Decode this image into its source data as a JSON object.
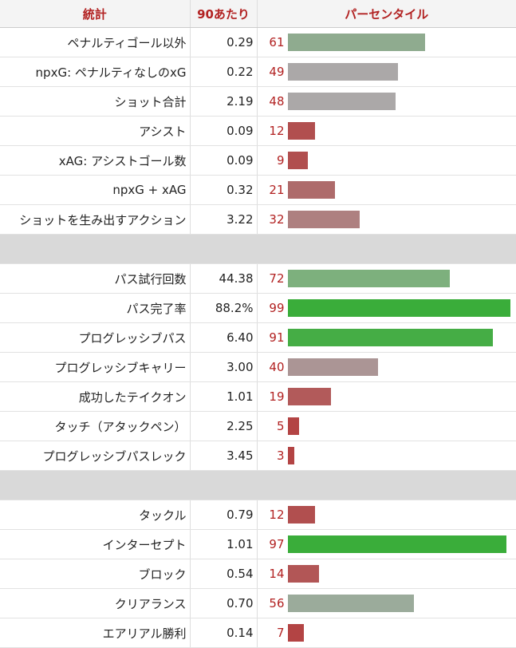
{
  "headers": {
    "stat": "統計",
    "per90": "90あたり",
    "percentile": "パーセンタイル"
  },
  "colors": {
    "header_text": "#b22222",
    "percentile_text": "#b22222",
    "bar_colors": {
      "61": "#8fab8f",
      "49": "#aba8a8",
      "48": "#aba8a8",
      "12": "#b14f4f",
      "9": "#b14f4f",
      "21": "#ae6b6b",
      "32": "#ae8080",
      "72": "#7db07d",
      "99": "#3aad3a",
      "91": "#45ad45",
      "40": "#ab9595",
      "19": "#b25a5a",
      "5": "#b34444",
      "3": "#b34444",
      "97": "#3aad3a",
      "14": "#b25656",
      "56": "#9bab9b",
      "7": "#b34444"
    }
  },
  "chart_data": {
    "type": "bar",
    "orientation": "horizontal",
    "value_range": [
      0,
      100
    ],
    "groups": [
      {
        "rows": [
          {
            "stat": "ペナルティゴール以外",
            "per90": "0.29",
            "percentile": 61
          },
          {
            "stat": "npxG: ペナルティなしのxG",
            "per90": "0.22",
            "percentile": 49
          },
          {
            "stat": "ショット合計",
            "per90": "2.19",
            "percentile": 48
          },
          {
            "stat": "アシスト",
            "per90": "0.09",
            "percentile": 12
          },
          {
            "stat": "xAG: アシストゴール数",
            "per90": "0.09",
            "percentile": 9
          },
          {
            "stat": "npxG + xAG",
            "per90": "0.32",
            "percentile": 21
          },
          {
            "stat": "ショットを生み出すアクション",
            "per90": "3.22",
            "percentile": 32
          }
        ]
      },
      {
        "rows": [
          {
            "stat": "パス試行回数",
            "per90": "44.38",
            "percentile": 72
          },
          {
            "stat": "パス完了率",
            "per90": "88.2%",
            "percentile": 99
          },
          {
            "stat": "プログレッシブパス",
            "per90": "6.40",
            "percentile": 91
          },
          {
            "stat": "プログレッシブキャリー",
            "per90": "3.00",
            "percentile": 40
          },
          {
            "stat": "成功したテイクオン",
            "per90": "1.01",
            "percentile": 19
          },
          {
            "stat": "タッチ（アタックペン）",
            "per90": "2.25",
            "percentile": 5
          },
          {
            "stat": "プログレッシブパスレック",
            "per90": "3.45",
            "percentile": 3
          }
        ]
      },
      {
        "rows": [
          {
            "stat": "タックル",
            "per90": "0.79",
            "percentile": 12
          },
          {
            "stat": "インターセプト",
            "per90": "1.01",
            "percentile": 97
          },
          {
            "stat": "ブロック",
            "per90": "0.54",
            "percentile": 14
          },
          {
            "stat": "クリアランス",
            "per90": "0.70",
            "percentile": 56
          },
          {
            "stat": "エアリアル勝利",
            "per90": "0.14",
            "percentile": 7
          }
        ]
      }
    ]
  }
}
